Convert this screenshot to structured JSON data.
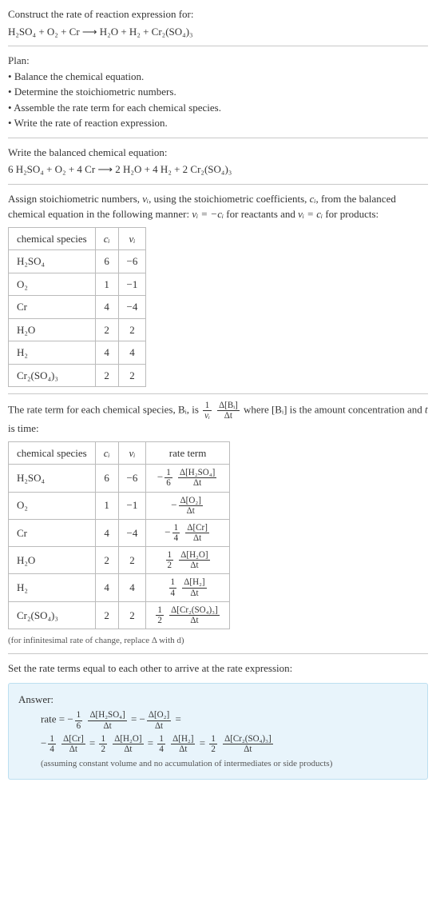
{
  "problem": {
    "prompt": "Construct the rate of reaction expression for:",
    "equation": "H₂SO₄ + O₂ + Cr ⟶ H₂O + H₂ + Cr₂(SO₄)₃"
  },
  "plan": {
    "heading": "Plan:",
    "items": [
      "Balance the chemical equation.",
      "Determine the stoichiometric numbers.",
      "Assemble the rate term for each chemical species.",
      "Write the rate of reaction expression."
    ]
  },
  "balanced": {
    "heading": "Write the balanced chemical equation:",
    "equation": "6 H₂SO₄ + O₂ + 4 Cr ⟶ 2 H₂O + 4 H₂ + 2 Cr₂(SO₄)₃"
  },
  "stoich": {
    "text_a": "Assign stoichiometric numbers, ",
    "nu": "νᵢ",
    "text_b": ", using the stoichiometric coefficients, ",
    "ci": "cᵢ",
    "text_c": ", from the balanced chemical equation in the following manner: ",
    "rel1": "νᵢ = −cᵢ",
    "text_d": " for reactants and ",
    "rel2": "νᵢ = cᵢ",
    "text_e": " for products:",
    "headers": [
      "chemical species",
      "cᵢ",
      "νᵢ"
    ],
    "rows": [
      [
        "H₂SO₄",
        "6",
        "−6"
      ],
      [
        "O₂",
        "1",
        "−1"
      ],
      [
        "Cr",
        "4",
        "−4"
      ],
      [
        "H₂O",
        "2",
        "2"
      ],
      [
        "H₂",
        "4",
        "4"
      ],
      [
        "Cr₂(SO₄)₃",
        "2",
        "2"
      ]
    ]
  },
  "rateterm": {
    "text_a": "The rate term for each chemical species, Bᵢ, is ",
    "frac_pre_num": "1",
    "frac_pre_den": "νᵢ",
    "frac_main_num": "Δ[Bᵢ]",
    "frac_main_den": "Δt",
    "text_b": " where [Bᵢ] is the amount concentration and ",
    "t": "t",
    "text_c": " is time:",
    "headers": [
      "chemical species",
      "cᵢ",
      "νᵢ",
      "rate term"
    ],
    "rows": [
      {
        "sp": "H₂SO₄",
        "c": "6",
        "nu": "−6",
        "neg": "−",
        "f1n": "1",
        "f1d": "6",
        "f2n": "Δ[H₂SO₄]",
        "f2d": "Δt"
      },
      {
        "sp": "O₂",
        "c": "1",
        "nu": "−1",
        "neg": "−",
        "f1n": "",
        "f1d": "",
        "f2n": "Δ[O₂]",
        "f2d": "Δt"
      },
      {
        "sp": "Cr",
        "c": "4",
        "nu": "−4",
        "neg": "−",
        "f1n": "1",
        "f1d": "4",
        "f2n": "Δ[Cr]",
        "f2d": "Δt"
      },
      {
        "sp": "H₂O",
        "c": "2",
        "nu": "2",
        "neg": "",
        "f1n": "1",
        "f1d": "2",
        "f2n": "Δ[H₂O]",
        "f2d": "Δt"
      },
      {
        "sp": "H₂",
        "c": "4",
        "nu": "4",
        "neg": "",
        "f1n": "1",
        "f1d": "4",
        "f2n": "Δ[H₂]",
        "f2d": "Δt"
      },
      {
        "sp": "Cr₂(SO₄)₃",
        "c": "2",
        "nu": "2",
        "neg": "",
        "f1n": "1",
        "f1d": "2",
        "f2n": "Δ[Cr₂(SO₄)₃]",
        "f2d": "Δt"
      }
    ],
    "note": "(for infinitesimal rate of change, replace Δ with d)"
  },
  "set_equal": "Set the rate terms equal to each other to arrive at the rate expression:",
  "answer": {
    "label": "Answer:",
    "line1": {
      "prefix": "rate = ",
      "terms": [
        {
          "neg": "−",
          "f1n": "1",
          "f1d": "6",
          "f2n": "Δ[H₂SO₄]",
          "f2d": "Δt",
          "tail": " = "
        },
        {
          "neg": "−",
          "f1n": "",
          "f1d": "",
          "f2n": "Δ[O₂]",
          "f2d": "Δt",
          "tail": " ="
        }
      ]
    },
    "line2": {
      "terms": [
        {
          "neg": "−",
          "f1n": "1",
          "f1d": "4",
          "f2n": "Δ[Cr]",
          "f2d": "Δt",
          "tail": " = "
        },
        {
          "neg": "",
          "f1n": "1",
          "f1d": "2",
          "f2n": "Δ[H₂O]",
          "f2d": "Δt",
          "tail": " = "
        },
        {
          "neg": "",
          "f1n": "1",
          "f1d": "4",
          "f2n": "Δ[H₂]",
          "f2d": "Δt",
          "tail": " = "
        },
        {
          "neg": "",
          "f1n": "1",
          "f1d": "2",
          "f2n": "Δ[Cr₂(SO₄)₃]",
          "f2d": "Δt",
          "tail": ""
        }
      ]
    },
    "note": "(assuming constant volume and no accumulation of intermediates or side products)"
  }
}
